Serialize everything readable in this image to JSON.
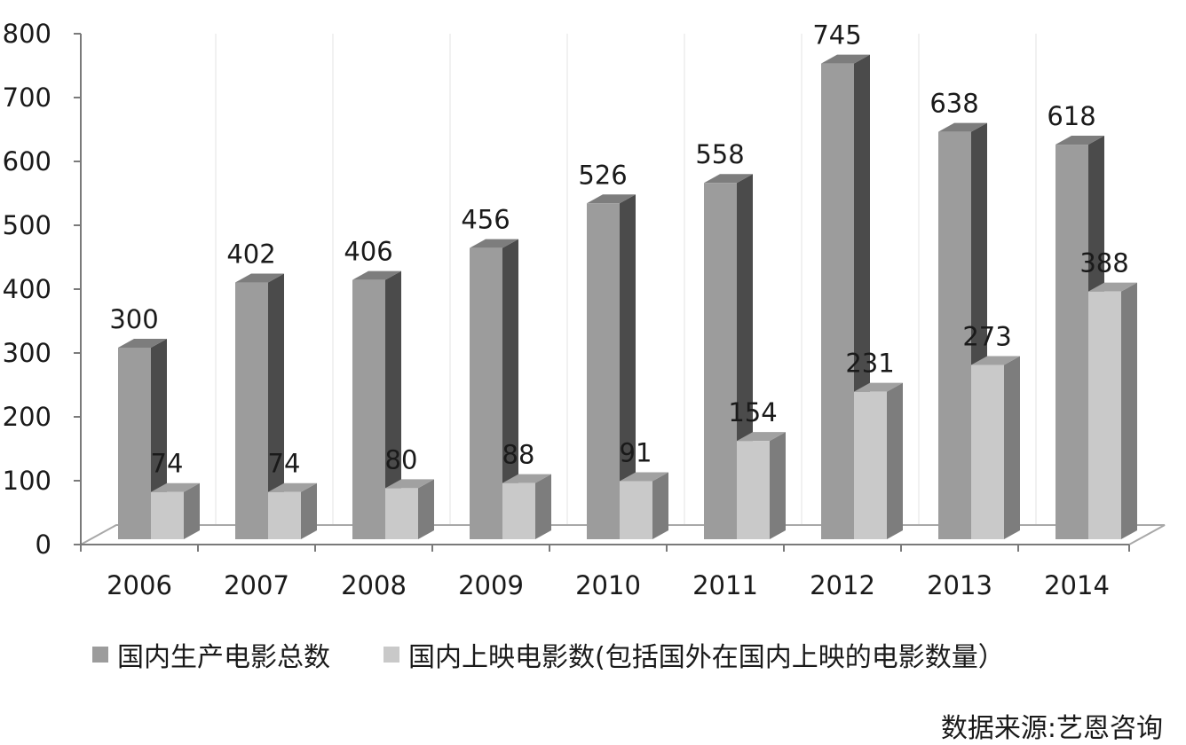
{
  "chart_data": {
    "type": "bar",
    "title": "",
    "xlabel": "",
    "ylabel": "",
    "categories": [
      "2006",
      "2007",
      "2008",
      "2009",
      "2010",
      "2011",
      "2012",
      "2013",
      "2014"
    ],
    "series": [
      {
        "name": "国内生产电影总数",
        "values": [
          300,
          402,
          406,
          456,
          526,
          558,
          745,
          638,
          618
        ],
        "color": "#9c9c9c"
      },
      {
        "name": "国内上映电影数(包括国外在国内上映的电影数量）",
        "values": [
          74,
          74,
          80,
          88,
          91,
          154,
          231,
          273,
          388
        ],
        "color": "#c9c9c9"
      }
    ],
    "ylim": [
      0,
      800
    ],
    "yticks": [
      0,
      100,
      200,
      300,
      400,
      500,
      600,
      700,
      800
    ],
    "style": "3d-clustered-column",
    "legend": "bottom",
    "grid": true
  },
  "source_label": "数据来源:艺恩咨询"
}
